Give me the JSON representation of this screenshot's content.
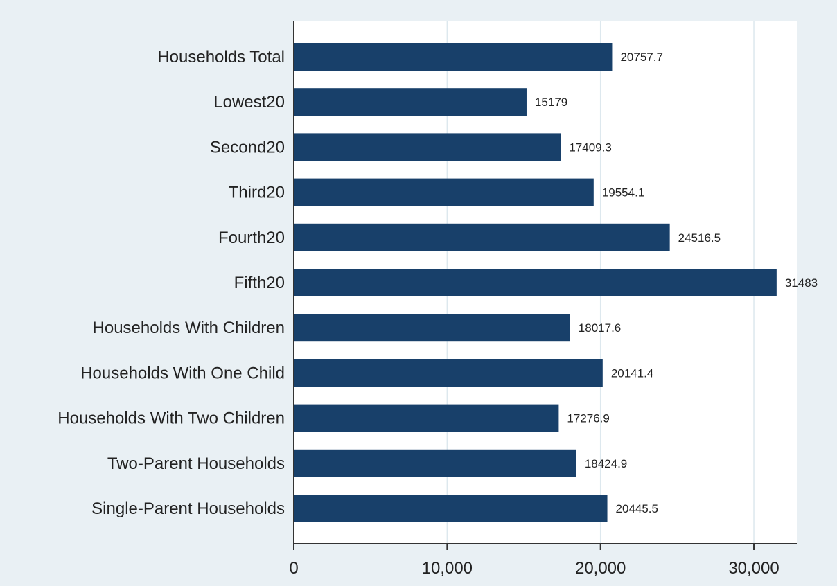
{
  "colors": {
    "bar": "#18406a",
    "outer_background": "#e9f0f4",
    "plot_background": "#ffffff",
    "grid": "#dde8ee",
    "axis": "#333333",
    "text": "#222222"
  },
  "chart_data": {
    "type": "bar",
    "orientation": "horizontal",
    "title": "",
    "xlabel": "",
    "ylabel": "",
    "categories": [
      "Households Total",
      "Lowest20",
      "Second20",
      "Third20",
      "Fourth20",
      "Fifth20",
      "Households With Children",
      "Households With One Child",
      "Households With Two Children",
      "Two-Parent Households",
      "Single-Parent Households"
    ],
    "values": [
      20757.7,
      15179,
      17409.3,
      19554.1,
      24516.5,
      31483,
      18017.6,
      20141.4,
      17276.9,
      18424.9,
      20445.5
    ],
    "value_labels": [
      "20757.7",
      "15179",
      "17409.3",
      "19554.1",
      "24516.5",
      "31483",
      "18017.6",
      "20141.4",
      "17276.9",
      "18424.9",
      "20445.5"
    ],
    "xlim": [
      0,
      32800
    ],
    "xticks": [
      0,
      10000,
      20000,
      30000
    ],
    "xtick_labels": [
      "0",
      "10,000",
      "20,000",
      "30,000"
    ],
    "grid": true,
    "legend": false
  }
}
